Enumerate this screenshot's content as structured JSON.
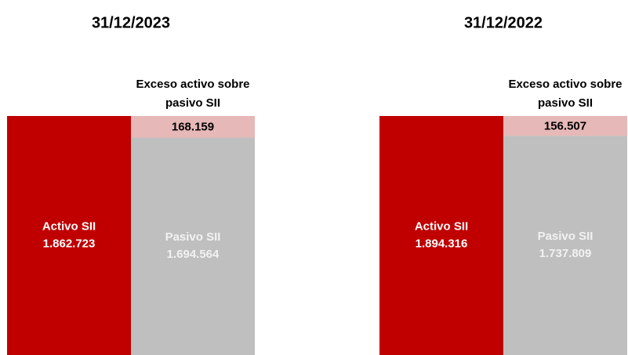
{
  "chart_data": [
    {
      "type": "bar",
      "stacked": true,
      "title": "31/12/2023",
      "categories": [
        null,
        null
      ],
      "ylim": [
        0,
        1862723
      ],
      "series": [
        {
          "name": "Activo SII",
          "color": "#c00000",
          "label_color": "#ffffff",
          "values": [
            1862723,
            null
          ],
          "value_labels": [
            "1.862.723",
            null
          ]
        },
        {
          "name": "Pasivo SII",
          "color": "#bfbfbf",
          "label_color": "#f2f2f2",
          "values": [
            null,
            1694564
          ],
          "value_labels": [
            null,
            "1.694.564"
          ]
        },
        {
          "name": "Exceso activo sobre pasivo SII",
          "color": "#e6b8b7",
          "label_color": "#000000",
          "values": [
            null,
            168159
          ],
          "value_labels": [
            null,
            "168.159"
          ]
        }
      ]
    },
    {
      "type": "bar",
      "stacked": true,
      "title": "31/12/2022",
      "categories": [
        null,
        null
      ],
      "ylim": [
        0,
        1894316
      ],
      "series": [
        {
          "name": "Activo SII",
          "color": "#c00000",
          "label_color": "#ffffff",
          "values": [
            1894316,
            null
          ],
          "value_labels": [
            "1.894.316",
            null
          ]
        },
        {
          "name": "Pasivo SII",
          "color": "#bfbfbf",
          "label_color": "#f2f2f2",
          "values": [
            null,
            1737809
          ],
          "value_labels": [
            null,
            "1.737.809"
          ]
        },
        {
          "name": "Exceso activo sobre pasivo SII",
          "color": "#e6b8b7",
          "label_color": "#000000",
          "values": [
            null,
            156507
          ],
          "value_labels": [
            null,
            "156.507"
          ]
        }
      ]
    }
  ]
}
